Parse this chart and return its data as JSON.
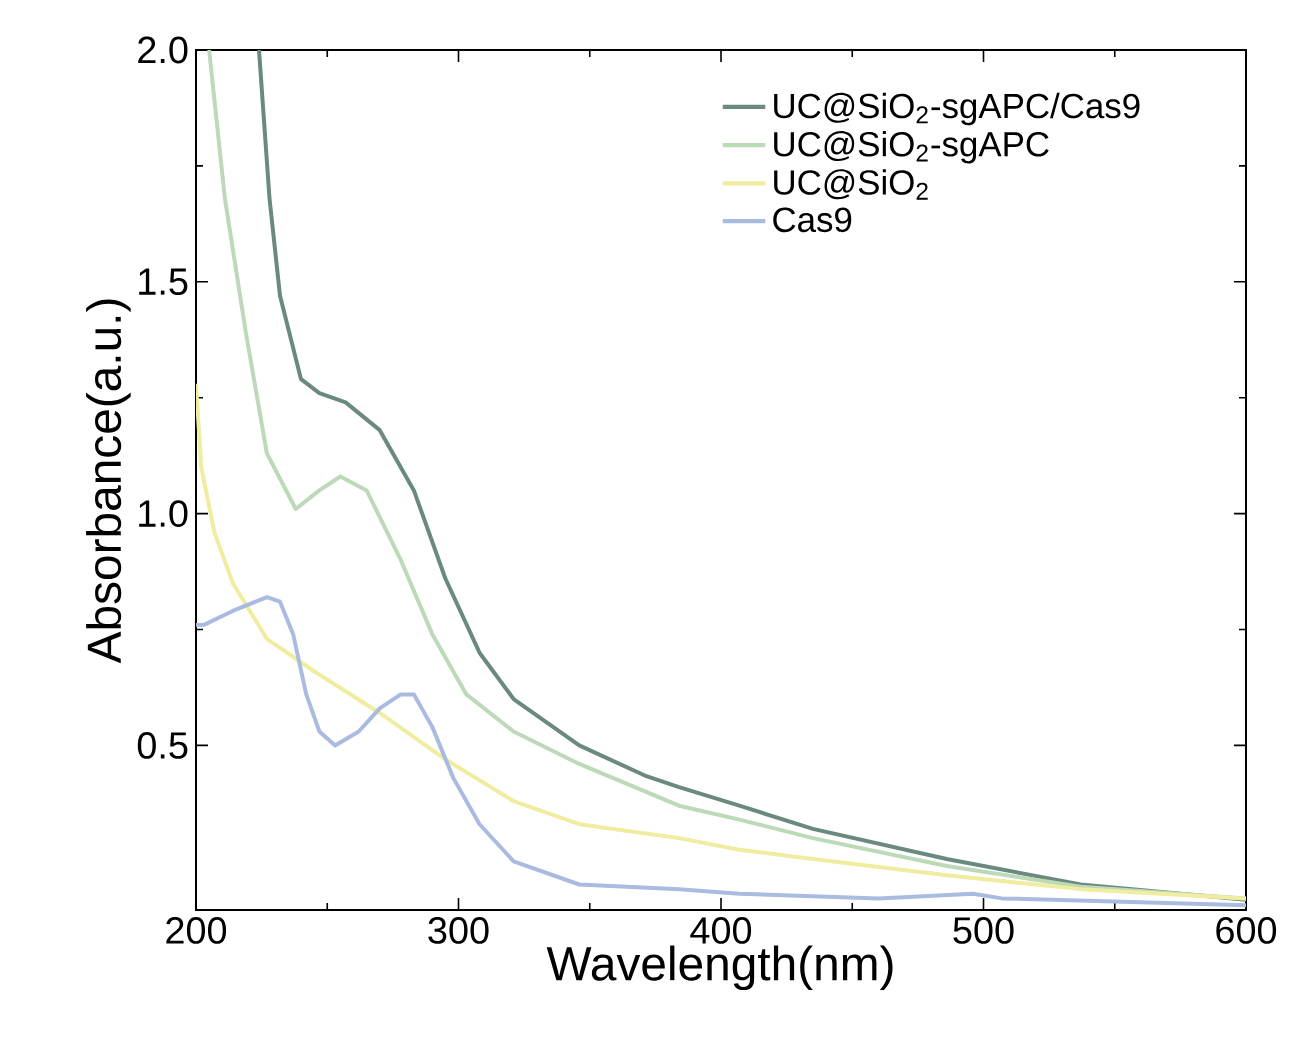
{
  "chart_data": {
    "type": "line",
    "xlabel": "Wavelength(nm)",
    "ylabel": "Absorbance(a.u.)",
    "xlim": [
      200,
      600
    ],
    "ylim": [
      0.145,
      2.0
    ],
    "xticks": [
      200,
      300,
      400,
      500,
      600
    ],
    "yticks": [
      {
        "value": 0.5,
        "label": "0.5"
      },
      {
        "value": 1.0,
        "label": "1.0"
      },
      {
        "value": 1.5,
        "label": "1.5"
      },
      {
        "value": 2.0,
        "label": "2.0"
      }
    ],
    "legend": "top right",
    "grid": false,
    "marker": "none",
    "line_style": "solid",
    "series": [
      {
        "name": "UC@SiO$_{2}$-sgAPC/Cas9",
        "color": "#6a8a80",
        "x": [
          224,
          228,
          232,
          240,
          247,
          257,
          270,
          283,
          295,
          308,
          321,
          346,
          371,
          384,
          407,
          435,
          486,
          537,
          600
        ],
        "values": [
          2.0,
          1.68,
          1.47,
          1.29,
          1.26,
          1.24,
          1.18,
          1.05,
          0.86,
          0.7,
          0.6,
          0.5,
          0.435,
          0.41,
          0.37,
          0.32,
          0.255,
          0.2,
          0.167
        ]
      },
      {
        "name": "UC@SiO$_{2}$-sgAPC",
        "color": "#bcd9b8",
        "x": [
          205,
          211,
          219,
          227,
          238,
          247,
          255,
          265,
          278,
          290,
          303,
          321,
          346,
          384,
          407,
          435,
          486,
          537,
          600
        ],
        "values": [
          2.0,
          1.68,
          1.39,
          1.13,
          1.01,
          1.05,
          1.08,
          1.05,
          0.9,
          0.74,
          0.61,
          0.53,
          0.46,
          0.37,
          0.34,
          0.3,
          0.24,
          0.195,
          0.17
        ]
      },
      {
        "name": "UC@SiO$_{2}$",
        "color": "#f0eca0",
        "x": [
          200,
          202,
          207,
          214,
          227,
          245,
          270,
          295,
          321,
          346,
          384,
          407,
          435,
          486,
          537,
          600
        ],
        "values": [
          1.28,
          1.1,
          0.96,
          0.85,
          0.73,
          0.66,
          0.57,
          0.47,
          0.38,
          0.33,
          0.3,
          0.275,
          0.255,
          0.22,
          0.19,
          0.17
        ]
      },
      {
        "name": "Cas9",
        "color": "#a9bbe0",
        "x": [
          200,
          203,
          214,
          227,
          232,
          237,
          242,
          247,
          253,
          262,
          270,
          278,
          283,
          290,
          298,
          308,
          321,
          346,
          384,
          407,
          460,
          496,
          507,
          600
        ],
        "values": [
          0.76,
          0.76,
          0.79,
          0.82,
          0.81,
          0.74,
          0.61,
          0.53,
          0.5,
          0.53,
          0.58,
          0.61,
          0.61,
          0.54,
          0.43,
          0.33,
          0.25,
          0.2,
          0.19,
          0.18,
          0.17,
          0.18,
          0.17,
          0.155
        ]
      }
    ]
  }
}
